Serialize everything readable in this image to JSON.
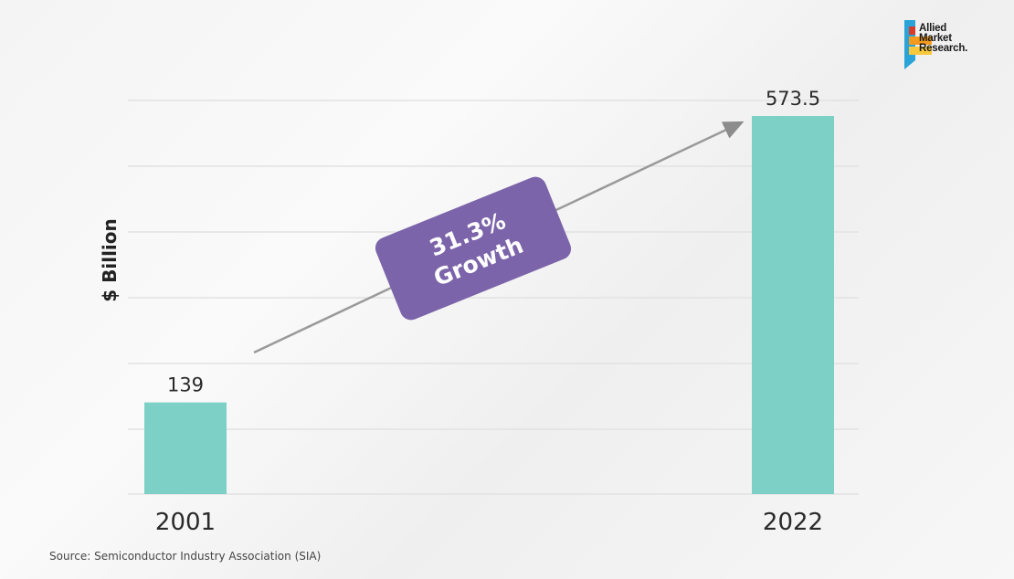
{
  "chart_data": {
    "type": "bar",
    "categories": [
      "2001",
      "2022"
    ],
    "values": [
      139,
      573.5
    ],
    "data_labels": [
      "139",
      "573.5"
    ],
    "ylabel": "$ Billion",
    "ylim": [
      0,
      600
    ],
    "grid": true,
    "bar_color": "#7dd0c6",
    "annotation": {
      "line1": "31.3%",
      "line2": "Growth",
      "color": "#7b64a9"
    }
  },
  "source": "Source: Semiconductor Industry Association (SIA)",
  "logo": {
    "line1": "Allied",
    "line2": "Market",
    "line3": "Research."
  }
}
